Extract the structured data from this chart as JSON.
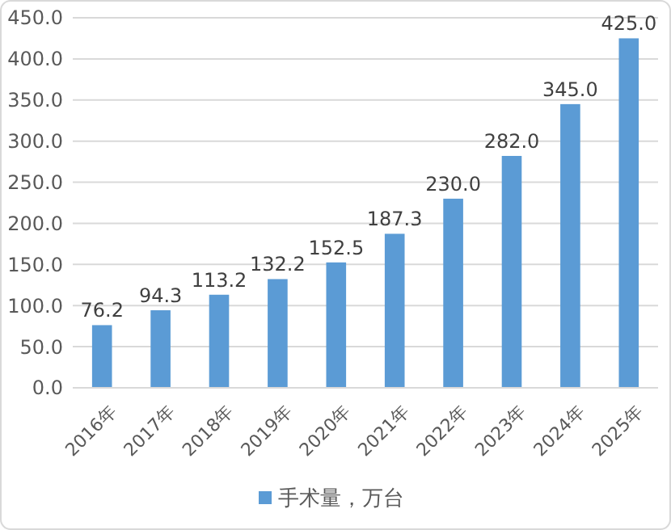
{
  "chart_data": {
    "type": "bar",
    "categories": [
      "2016年",
      "2017年",
      "2018年",
      "2019年",
      "2020年",
      "2021年",
      "2022年",
      "2023年",
      "2024年",
      "2025年"
    ],
    "series": [
      {
        "name": "手术量，万台",
        "color": "#5b9bd5",
        "values": [
          76.2,
          94.3,
          113.2,
          132.2,
          152.5,
          187.3,
          230.0,
          282.0,
          345.0,
          425.0
        ],
        "value_labels": [
          "76.2",
          "94.3",
          "113.2",
          "132.2",
          "152.5",
          "187.3",
          "230.0",
          "282.0",
          "345.0",
          "425.0"
        ]
      }
    ],
    "ylim": [
      0,
      450
    ],
    "yticks": [
      {
        "value": 0,
        "label": "0.0"
      },
      {
        "value": 50,
        "label": "50.0"
      },
      {
        "value": 100,
        "label": "100.0"
      },
      {
        "value": 150,
        "label": "150.0"
      },
      {
        "value": 200,
        "label": "200.0"
      },
      {
        "value": 250,
        "label": "250.0"
      },
      {
        "value": 300,
        "label": "300.0"
      },
      {
        "value": 350,
        "label": "350.0"
      },
      {
        "value": 400,
        "label": "400.0"
      },
      {
        "value": 450,
        "label": "450.0"
      }
    ],
    "grid": "y",
    "legend": "bottom"
  }
}
